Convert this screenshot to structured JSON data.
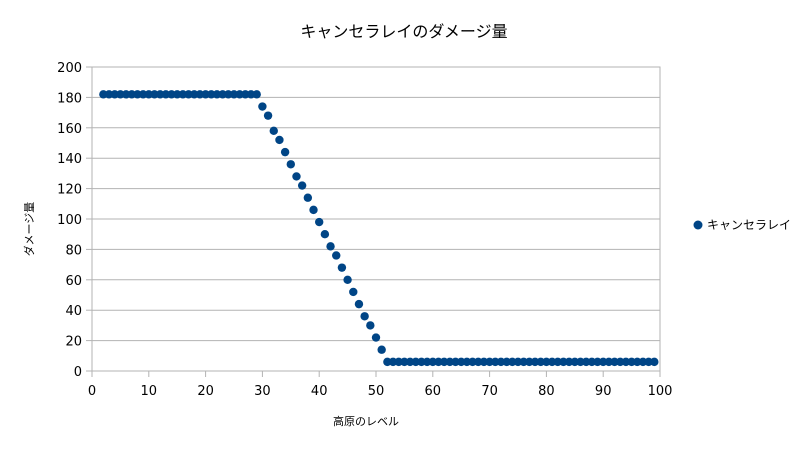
{
  "chart_data": {
    "type": "scatter",
    "title": "キャンセラレイのダメージ量",
    "xlabel": "高原のレベル",
    "ylabel": "ダメージ量",
    "xlim": [
      0,
      100
    ],
    "ylim": [
      0,
      200
    ],
    "xticks": [
      0,
      10,
      20,
      30,
      40,
      50,
      60,
      70,
      80,
      90,
      100
    ],
    "yticks": [
      0,
      20,
      40,
      60,
      80,
      100,
      120,
      140,
      160,
      180,
      200
    ],
    "grid": "horizontal",
    "legend_position": "right",
    "marker_color": "#004586",
    "series": [
      {
        "name": "キャンセラレイ",
        "x": [
          2,
          3,
          4,
          5,
          6,
          7,
          8,
          9,
          10,
          11,
          12,
          13,
          14,
          15,
          16,
          17,
          18,
          19,
          20,
          21,
          22,
          23,
          24,
          25,
          26,
          27,
          28,
          29,
          30,
          31,
          32,
          33,
          34,
          35,
          36,
          37,
          38,
          39,
          40,
          41,
          42,
          43,
          44,
          45,
          46,
          47,
          48,
          49,
          50,
          51,
          52,
          53,
          54,
          55,
          56,
          57,
          58,
          59,
          60,
          61,
          62,
          63,
          64,
          65,
          66,
          67,
          68,
          69,
          70,
          71,
          72,
          73,
          74,
          75,
          76,
          77,
          78,
          79,
          80,
          81,
          82,
          83,
          84,
          85,
          86,
          87,
          88,
          89,
          90,
          91,
          92,
          93,
          94,
          95,
          96,
          97,
          98,
          99
        ],
        "y": [
          182,
          182,
          182,
          182,
          182,
          182,
          182,
          182,
          182,
          182,
          182,
          182,
          182,
          182,
          182,
          182,
          182,
          182,
          182,
          182,
          182,
          182,
          182,
          182,
          182,
          182,
          182,
          182,
          174,
          168,
          158,
          152,
          144,
          136,
          128,
          122,
          114,
          106,
          98,
          90,
          82,
          76,
          68,
          60,
          52,
          44,
          36,
          30,
          22,
          14,
          6,
          6,
          6,
          6,
          6,
          6,
          6,
          6,
          6,
          6,
          6,
          6,
          6,
          6,
          6,
          6,
          6,
          6,
          6,
          6,
          6,
          6,
          6,
          6,
          6,
          6,
          6,
          6,
          6,
          6,
          6,
          6,
          6,
          6,
          6,
          6,
          6,
          6,
          6,
          6,
          6,
          6,
          6,
          6,
          6,
          6,
          6,
          6
        ]
      }
    ]
  }
}
